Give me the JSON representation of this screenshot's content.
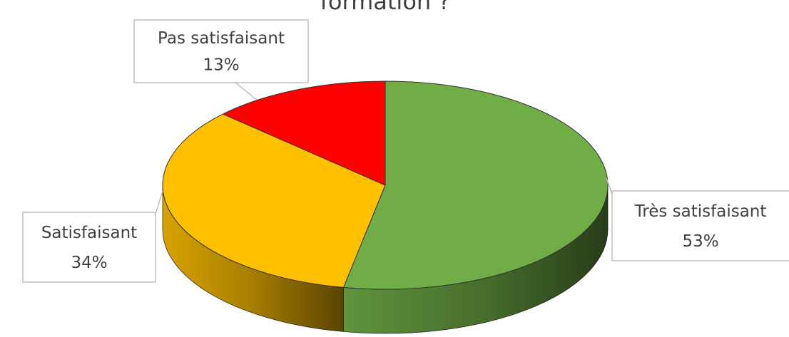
{
  "chart_data": {
    "type": "pie",
    "title": "formation ?",
    "categories": [
      "Très satisfaisant",
      "Satisfaisant",
      "Pas satisfaisant"
    ],
    "values": [
      53,
      34,
      13
    ],
    "value_labels": [
      "53%",
      "34%",
      "13%"
    ],
    "colors": [
      "#70ad47",
      "#ffc000",
      "#ff0000"
    ]
  }
}
